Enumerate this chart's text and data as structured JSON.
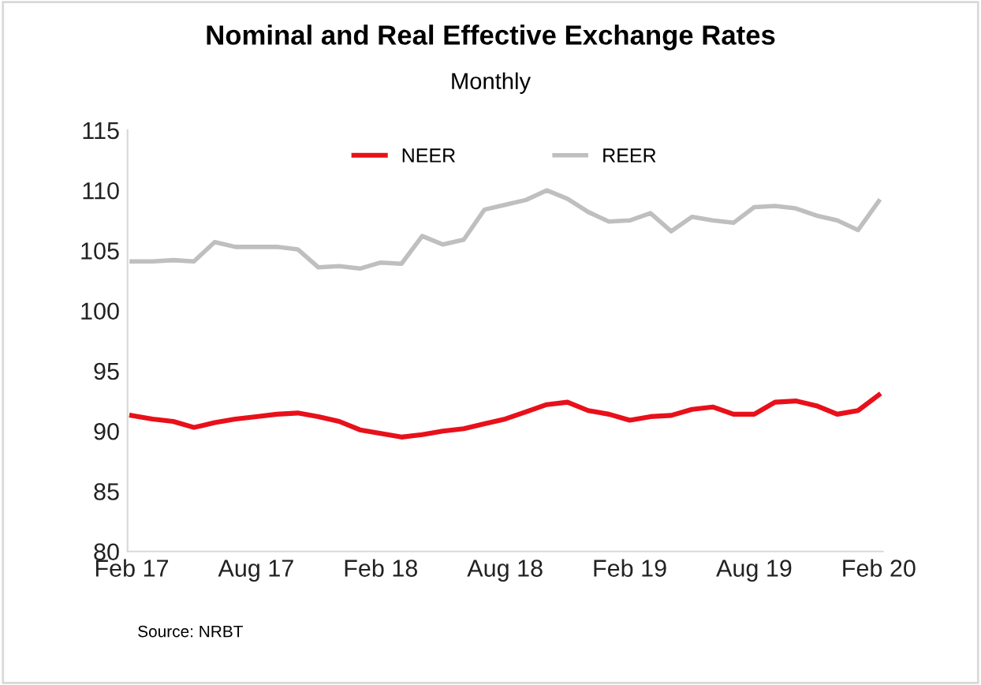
{
  "chart_data": {
    "type": "line",
    "title": "Nominal and Real Effective Exchange Rates",
    "subtitle": "Monthly",
    "categories": [
      "Feb 17",
      null,
      null,
      null,
      null,
      null,
      "Aug 17",
      null,
      null,
      null,
      null,
      null,
      "Feb 18",
      null,
      null,
      null,
      null,
      null,
      "Aug 18",
      null,
      null,
      null,
      null,
      null,
      "Feb 19",
      null,
      null,
      null,
      null,
      null,
      "Aug 19",
      null,
      null,
      null,
      null,
      null,
      "Feb 20"
    ],
    "series": [
      {
        "name": "NEER",
        "color": "#e8101a",
        "values": [
          91.3,
          91.0,
          90.8,
          90.3,
          90.7,
          91.0,
          91.2,
          91.4,
          91.5,
          91.2,
          90.8,
          90.1,
          89.8,
          89.5,
          89.7,
          90.0,
          90.2,
          90.6,
          91.0,
          91.6,
          92.2,
          92.4,
          91.7,
          91.4,
          90.9,
          91.2,
          91.3,
          91.8,
          92.0,
          91.4,
          91.4,
          92.4,
          92.5,
          92.1,
          91.4,
          91.7,
          93.0
        ]
      },
      {
        "name": "REER",
        "color": "#bfbfbf",
        "values": [
          104.1,
          104.1,
          104.2,
          104.1,
          105.7,
          105.3,
          105.3,
          105.3,
          105.1,
          103.6,
          103.7,
          103.5,
          104.0,
          103.9,
          106.2,
          105.5,
          105.9,
          108.4,
          108.8,
          109.2,
          110.0,
          109.3,
          108.2,
          107.4,
          107.5,
          108.1,
          106.6,
          107.8,
          107.5,
          107.3,
          108.6,
          108.7,
          108.5,
          107.9,
          107.5,
          106.7,
          109.1
        ]
      }
    ],
    "ylim": [
      80,
      115
    ],
    "yticks": [
      80,
      85,
      90,
      95,
      100,
      105,
      110,
      115
    ],
    "grid": false,
    "legend": "top",
    "marker": "none",
    "line_style": "solid",
    "annotations": [
      "Source: NRBT"
    ]
  }
}
